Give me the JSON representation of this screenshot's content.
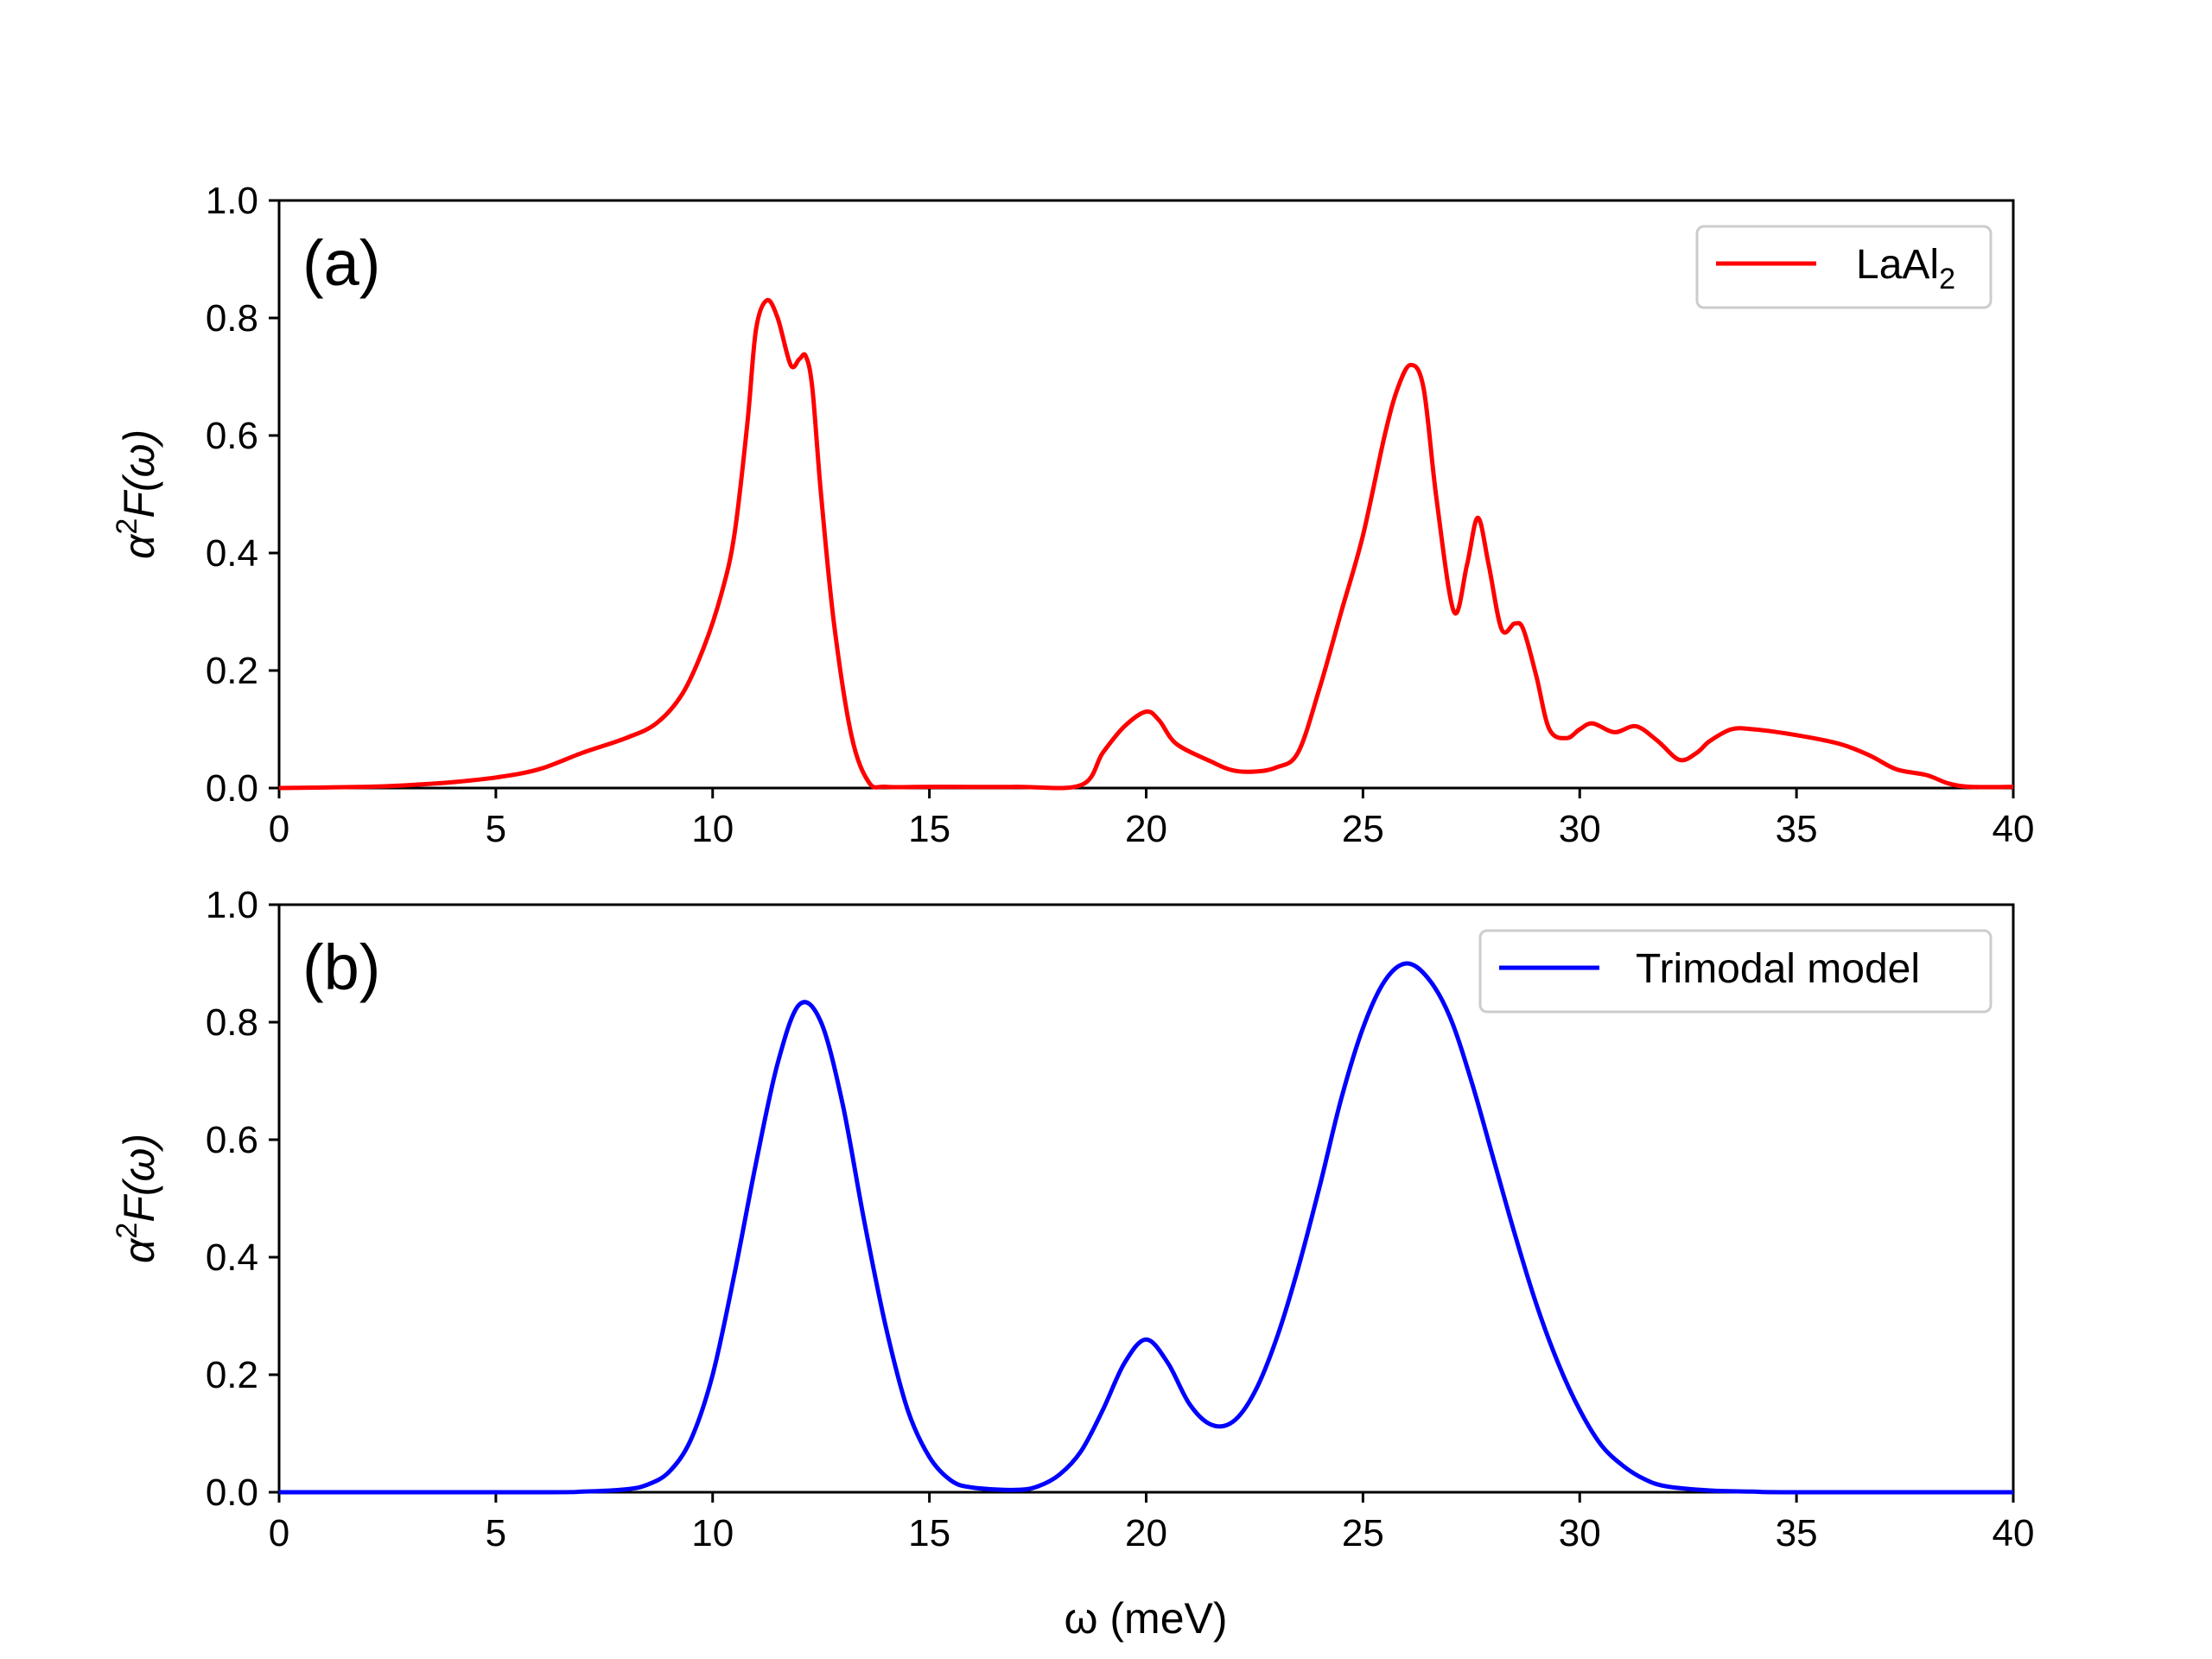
{
  "chart_data": [
    {
      "type": "line",
      "panel": "(a)",
      "xlabel": "",
      "ylabel": "α²F(ω)",
      "ylabel_parts": {
        "base": "α",
        "sup": "2",
        "rest": "F(ω)"
      },
      "xlim": [
        0,
        40
      ],
      "ylim": [
        0,
        1.0
      ],
      "xticks": [
        0,
        5,
        10,
        15,
        20,
        25,
        30,
        35,
        40
      ],
      "xtick_labels": [
        "0",
        "5",
        "10",
        "15",
        "20",
        "25",
        "30",
        "35",
        "40"
      ],
      "yticks": [
        0,
        0.2,
        0.4,
        0.6,
        0.8,
        1.0
      ],
      "ytick_labels": [
        "0.0",
        "0.2",
        "0.4",
        "0.6",
        "0.8",
        "1.0"
      ],
      "legend_position": "top-right",
      "series": [
        {
          "name": "LaAl2",
          "label_base": "LaAl",
          "label_sub": "2",
          "color": "#ff0000",
          "x": [
            0,
            2,
            3,
            4,
            5,
            6,
            7,
            8,
            8.7,
            9.3,
            9.8,
            10.2,
            10.5,
            10.8,
            11,
            11.25,
            11.5,
            11.8,
            12,
            12.15,
            12.3,
            12.5,
            12.8,
            13.2,
            13.6,
            14,
            15,
            17,
            18.5,
            19,
            19.5,
            20,
            20.3,
            20.7,
            21.5,
            22,
            22.5,
            23,
            23.5,
            24,
            24.5,
            25,
            25.5,
            25.8,
            26.1,
            26.4,
            26.7,
            27.1,
            27.4,
            27.65,
            27.9,
            28.2,
            28.5,
            28.7,
            29,
            29.3,
            29.7,
            30,
            30.3,
            30.8,
            31.3,
            31.8,
            32.3,
            32.7,
            33,
            33.5,
            34,
            35,
            36,
            36.7,
            37.3,
            38,
            38.5,
            39,
            40
          ],
          "y": [
            0,
            0.002,
            0.005,
            0.01,
            0.018,
            0.032,
            0.06,
            0.085,
            0.11,
            0.16,
            0.24,
            0.33,
            0.43,
            0.62,
            0.78,
            0.83,
            0.8,
            0.72,
            0.73,
            0.735,
            0.68,
            0.5,
            0.28,
            0.09,
            0.01,
            0.002,
            0.002,
            0.002,
            0.005,
            0.06,
            0.105,
            0.13,
            0.115,
            0.075,
            0.045,
            0.03,
            0.028,
            0.035,
            0.06,
            0.17,
            0.3,
            0.43,
            0.6,
            0.68,
            0.72,
            0.68,
            0.49,
            0.3,
            0.38,
            0.46,
            0.38,
            0.27,
            0.28,
            0.27,
            0.19,
            0.1,
            0.085,
            0.1,
            0.11,
            0.095,
            0.105,
            0.08,
            0.048,
            0.06,
            0.08,
            0.1,
            0.1,
            0.09,
            0.075,
            0.055,
            0.032,
            0.022,
            0.008,
            0.002,
            0.002
          ]
        }
      ]
    },
    {
      "type": "line",
      "panel": "(b)",
      "xlabel": "ω (meV)",
      "ylabel": "α²F(ω)",
      "ylabel_parts": {
        "base": "α",
        "sup": "2",
        "rest": "F(ω)"
      },
      "xlim": [
        0,
        40
      ],
      "ylim": [
        0,
        1.0
      ],
      "xticks": [
        0,
        5,
        10,
        15,
        20,
        25,
        30,
        35,
        40
      ],
      "xtick_labels": [
        "0",
        "5",
        "10",
        "15",
        "20",
        "25",
        "30",
        "35",
        "40"
      ],
      "yticks": [
        0,
        0.2,
        0.4,
        0.6,
        0.8,
        1.0
      ],
      "ytick_labels": [
        "0.0",
        "0.2",
        "0.4",
        "0.6",
        "0.8",
        "1.0"
      ],
      "legend_position": "top-right",
      "series": [
        {
          "name": "Trimodal model",
          "label_base": "Trimodal model",
          "label_sub": "",
          "color": "#0000ff",
          "x": [
            0,
            6,
            7,
            8,
            8.5,
            9,
            9.5,
            10,
            10.5,
            11,
            11.5,
            12,
            12.5,
            13,
            13.5,
            14,
            14.5,
            15,
            15.5,
            16,
            17,
            17.5,
            18,
            18.5,
            19,
            19.5,
            20,
            20.5,
            21,
            21.5,
            22,
            22.5,
            23,
            23.5,
            24,
            24.5,
            25,
            25.5,
            26,
            26.5,
            27,
            27.5,
            28,
            28.5,
            29,
            29.5,
            30,
            30.5,
            31,
            31.5,
            32,
            33,
            34,
            35,
            40
          ],
          "y": [
            0,
            0,
            0.001,
            0.005,
            0.013,
            0.035,
            0.09,
            0.2,
            0.37,
            0.56,
            0.73,
            0.83,
            0.8,
            0.66,
            0.46,
            0.28,
            0.14,
            0.06,
            0.02,
            0.008,
            0.004,
            0.01,
            0.03,
            0.07,
            0.14,
            0.22,
            0.26,
            0.22,
            0.15,
            0.115,
            0.12,
            0.17,
            0.26,
            0.38,
            0.52,
            0.67,
            0.79,
            0.87,
            0.9,
            0.875,
            0.81,
            0.7,
            0.57,
            0.44,
            0.32,
            0.22,
            0.14,
            0.08,
            0.045,
            0.022,
            0.01,
            0.003,
            0.001,
            0,
            0
          ]
        }
      ]
    }
  ]
}
